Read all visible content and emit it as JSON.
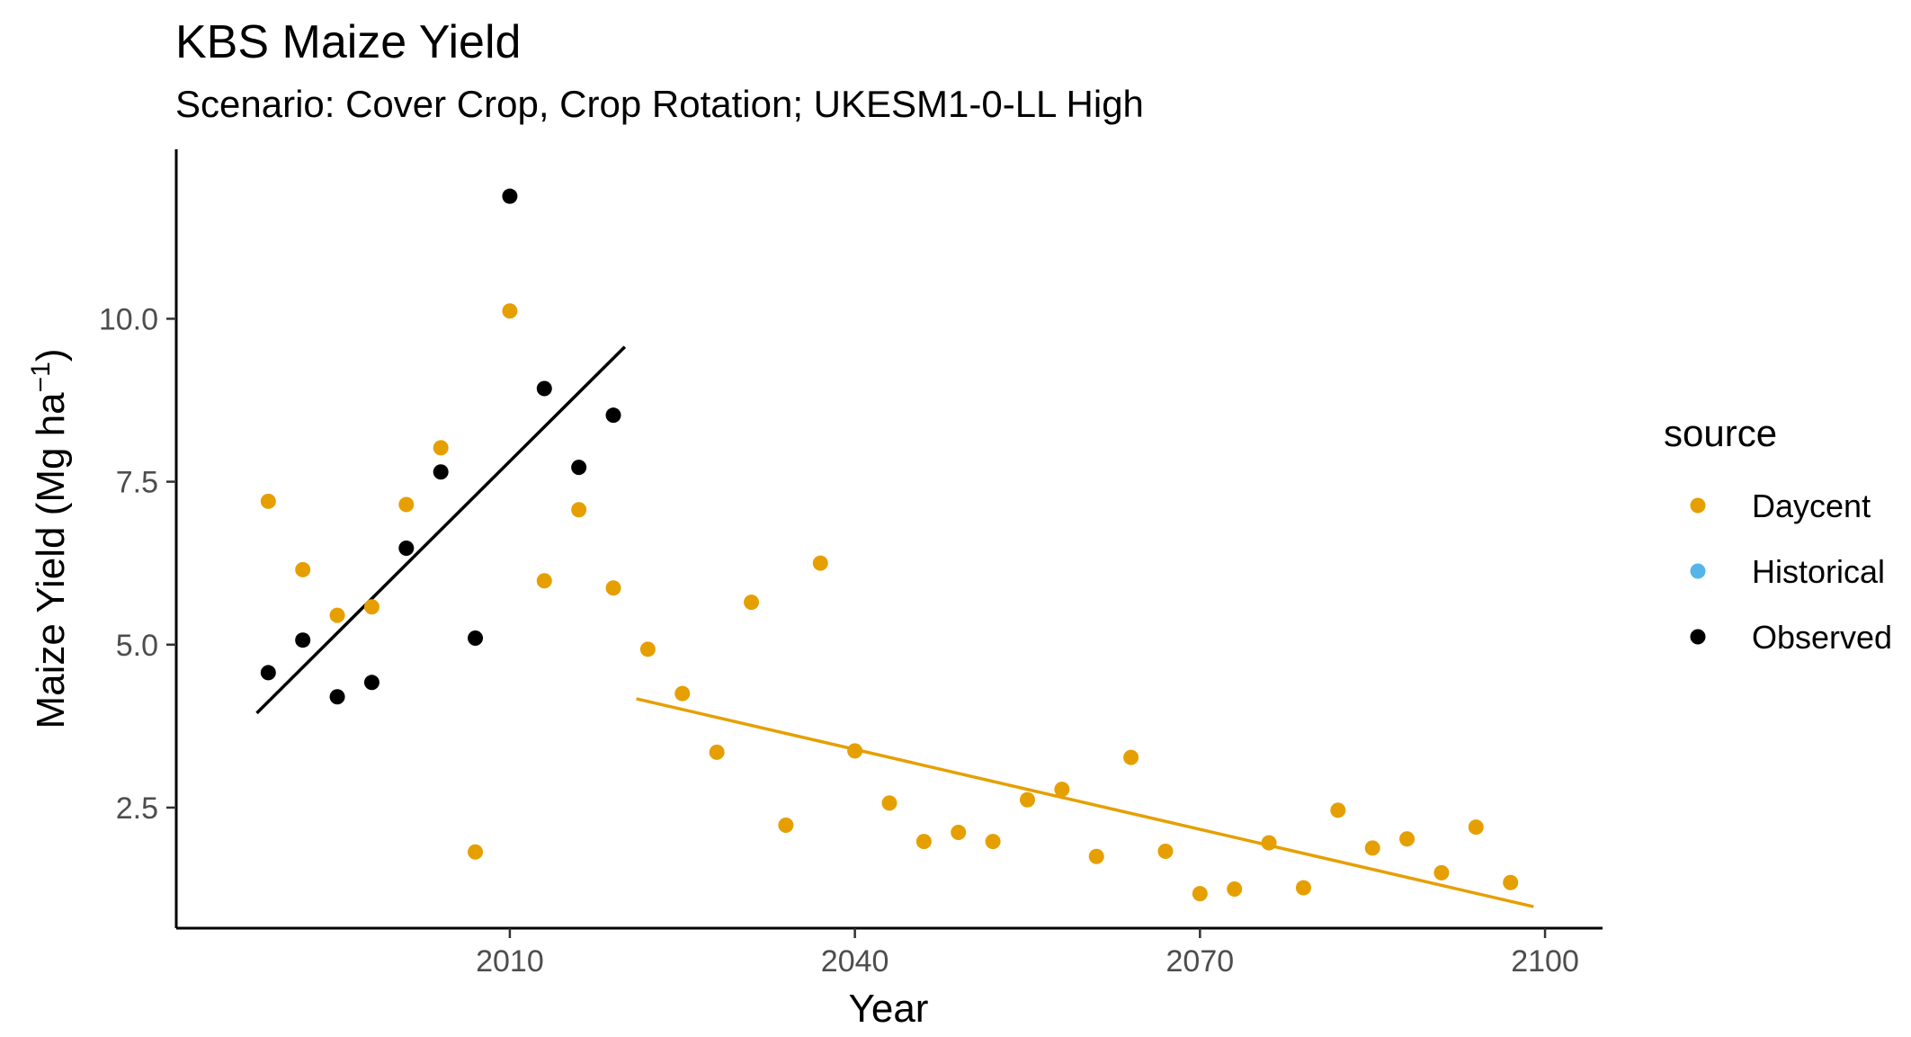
{
  "chart_data": {
    "type": "scatter",
    "title": "KBS Maize Yield",
    "subtitle": "Scenario: Cover Crop, Crop Rotation; UKESM1-0-LL High",
    "xlabel": "Year",
    "ylabel": "Maize Yield (Mg ha",
    "ylabel_sup": "−1",
    "ylabel_close": ")",
    "xlim": [
      1981,
      2105
    ],
    "ylim": [
      0.65,
      12.6
    ],
    "x_ticks": [
      2010,
      2040,
      2070,
      2100
    ],
    "y_ticks": [
      2.5,
      5.0,
      7.5,
      10.0
    ],
    "x_tick_labels": [
      "2010",
      "2040",
      "2070",
      "2100"
    ],
    "y_tick_labels": [
      "2.5",
      "5.0",
      "7.5",
      "10.0"
    ],
    "grid": false,
    "legend": {
      "title": "source",
      "position": "right",
      "entries": [
        {
          "label": "Daycent",
          "color": "#E69F00"
        },
        {
          "label": "Historical",
          "color": "#56B4E9"
        },
        {
          "label": "Observed",
          "color": "#000000"
        }
      ]
    },
    "series": [
      {
        "name": "Daycent",
        "color": "#E69F00",
        "points": [
          [
            1989,
            7.2
          ],
          [
            1992,
            6.15
          ],
          [
            1995,
            5.45
          ],
          [
            1998,
            5.58
          ],
          [
            2001,
            7.15
          ],
          [
            2004,
            8.02
          ],
          [
            2007,
            1.82
          ],
          [
            2010,
            10.12
          ],
          [
            2013,
            5.98
          ],
          [
            2016,
            7.07
          ],
          [
            2019,
            5.87
          ],
          [
            2022,
            4.93
          ],
          [
            2025,
            4.25
          ],
          [
            2028,
            3.35
          ],
          [
            2031,
            5.65
          ],
          [
            2034,
            2.23
          ],
          [
            2037,
            6.25
          ],
          [
            2040,
            3.37
          ],
          [
            2043,
            2.57
          ],
          [
            2046,
            1.98
          ],
          [
            2049,
            2.12
          ],
          [
            2052,
            1.98
          ],
          [
            2055,
            2.62
          ],
          [
            2058,
            2.78
          ],
          [
            2061,
            1.75
          ],
          [
            2064,
            3.27
          ],
          [
            2067,
            1.83
          ],
          [
            2070,
            1.18
          ],
          [
            2073,
            1.25
          ],
          [
            2076,
            1.96
          ],
          [
            2079,
            1.27
          ],
          [
            2082,
            2.46
          ],
          [
            2085,
            1.88
          ],
          [
            2088,
            2.02
          ],
          [
            2091,
            1.5
          ],
          [
            2094,
            2.2
          ],
          [
            2097,
            1.35
          ]
        ],
        "trend": [
          [
            2021,
            4.17
          ],
          [
            2099,
            0.98
          ]
        ]
      },
      {
        "name": "Historical",
        "color": "#56B4E9",
        "points": []
      },
      {
        "name": "Observed",
        "color": "#000000",
        "points": [
          [
            1989,
            4.57
          ],
          [
            1992,
            5.07
          ],
          [
            1995,
            4.2
          ],
          [
            1998,
            4.42
          ],
          [
            2001,
            6.48
          ],
          [
            2004,
            7.65
          ],
          [
            2007,
            5.1
          ],
          [
            2010,
            11.88
          ],
          [
            2013,
            8.93
          ],
          [
            2016,
            7.72
          ],
          [
            2019,
            8.52
          ]
        ],
        "trend": [
          [
            1988,
            3.95
          ],
          [
            2020,
            9.57
          ]
        ]
      }
    ]
  }
}
